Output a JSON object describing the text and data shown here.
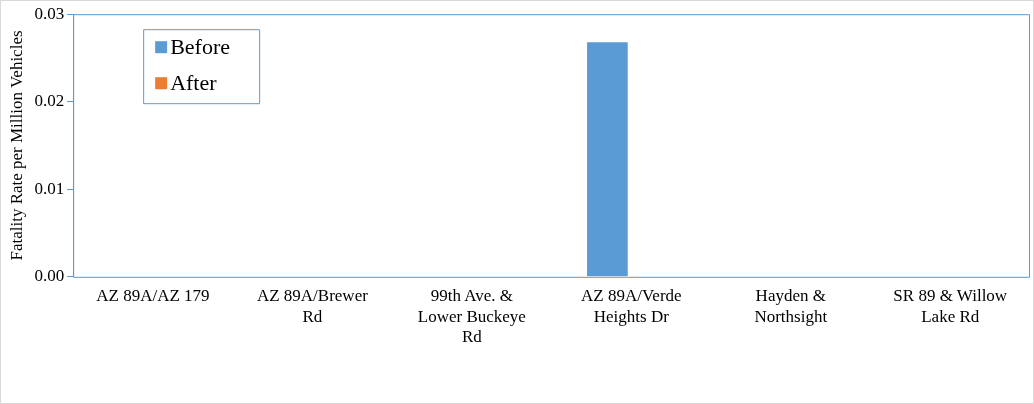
{
  "chart_data": {
    "type": "bar",
    "ylabel": "Fatality Rate per Million Vehicles",
    "categories": [
      "AZ 89A/AZ 179",
      "AZ 89A/Brewer Rd",
      "99th Ave. & Lower Buckeye Rd",
      "AZ 89A/Verde Heights Dr",
      "Hayden & Northsight",
      "SR 89 & Willow Lake Rd"
    ],
    "series": [
      {
        "name": "Before",
        "color": "#5b9bd5",
        "values": [
          0,
          0,
          0,
          0.0268,
          0,
          0
        ]
      },
      {
        "name": "After",
        "color": "#ed7d31",
        "values": [
          0,
          0,
          0,
          0,
          0,
          0
        ]
      }
    ],
    "ylim": [
      0,
      0.03
    ],
    "yticks": [
      {
        "value": 0,
        "label": "0.00"
      },
      {
        "value": 0.01,
        "label": "0.01"
      },
      {
        "value": 0.02,
        "label": "0.02"
      },
      {
        "value": 0.03,
        "label": "0.03"
      }
    ],
    "grid": false,
    "legend": "top left"
  }
}
